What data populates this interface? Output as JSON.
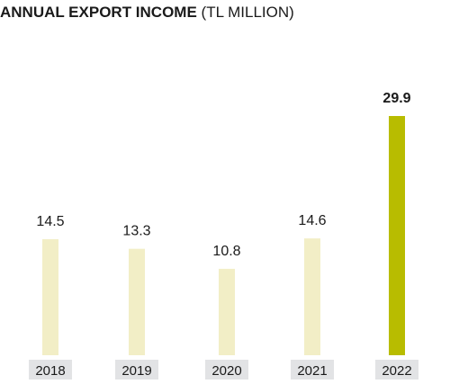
{
  "chart_data": {
    "type": "bar",
    "title": "ANNUAL EXPORT INCOME",
    "unit": "(TL MILLION)",
    "categories": [
      "2018",
      "2019",
      "2020",
      "2021",
      "2022"
    ],
    "values": [
      14.5,
      13.3,
      10.8,
      14.6,
      29.9
    ],
    "value_labels": [
      "14.5",
      "13.3",
      "10.8",
      "14.6",
      "29.9"
    ],
    "highlight_index": 4,
    "ylim": [
      0,
      29.9
    ],
    "grid": false,
    "colors": {
      "bar": "#f2eec6",
      "highlight_bar": "#b8bc00",
      "category_box": "#e2e3e5",
      "text": "#1a1a1a"
    }
  }
}
